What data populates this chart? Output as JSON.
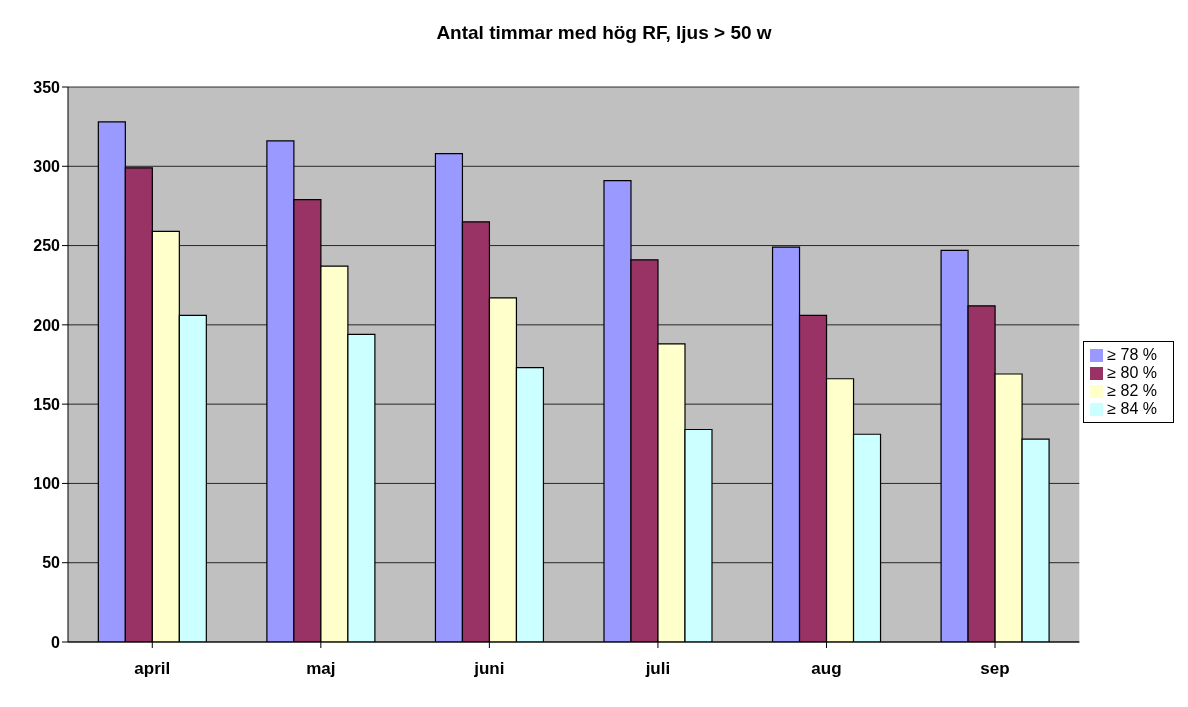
{
  "chart_data": {
    "type": "bar",
    "title": "Antal timmar med hög RF, ljus > 50 w",
    "categories": [
      "april",
      "maj",
      "juni",
      "juli",
      "aug",
      "sep"
    ],
    "series": [
      {
        "name": "≥ 78 %",
        "color": "#9999ff",
        "values": [
          328,
          316,
          308,
          291,
          249,
          247
        ]
      },
      {
        "name": "≥ 80 %",
        "color": "#993366",
        "values": [
          299,
          279,
          265,
          241,
          206,
          212
        ]
      },
      {
        "name": "≥ 82 %",
        "color": "#ffffcc",
        "values": [
          259,
          237,
          217,
          188,
          166,
          169
        ]
      },
      {
        "name": "≥ 84 %",
        "color": "#ccffff",
        "values": [
          206,
          194,
          173,
          134,
          131,
          128
        ]
      }
    ],
    "ylim": [
      0,
      350
    ],
    "yticks": [
      0,
      50,
      100,
      150,
      200,
      250,
      300,
      350
    ],
    "grid": "y",
    "legend": "right"
  }
}
